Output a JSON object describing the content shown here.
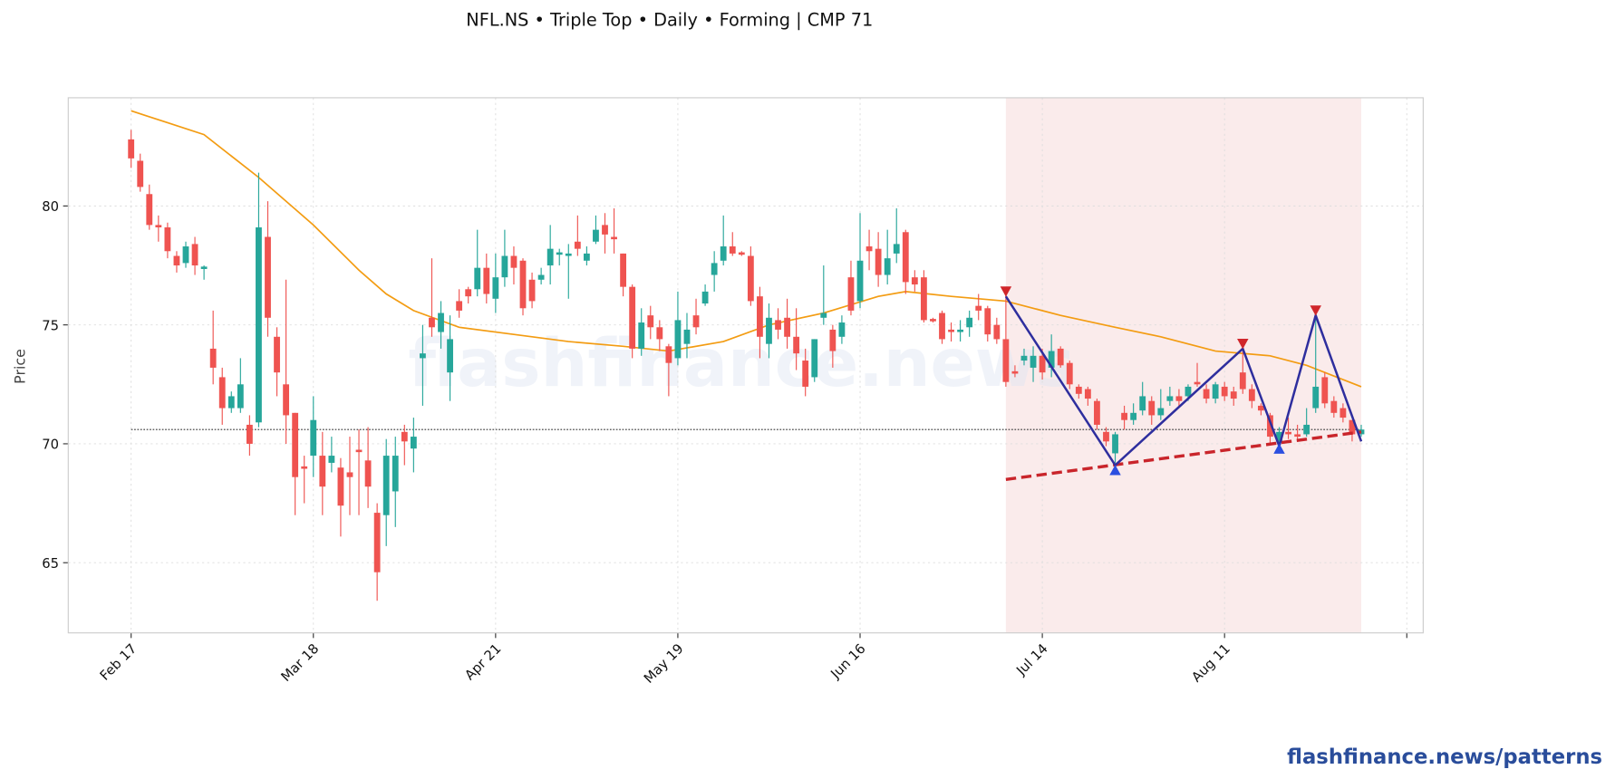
{
  "chart_data": {
    "type": "candlestick",
    "title": "NFL.NS  •  Triple Top  •  Daily  •  Forming  |  CMP 71",
    "ylabel": "Price",
    "watermark": "flashfinance.news",
    "footer": "flashfinance.news/patterns",
    "xlim": [
      -6.9,
      141.8
    ],
    "ylim": [
      62.05,
      84.55
    ],
    "yticks": [
      65,
      70,
      75,
      80
    ],
    "xticks": [
      {
        "value": 0,
        "label": "Feb 17"
      },
      {
        "value": 20,
        "label": "Mar 18"
      },
      {
        "value": 40,
        "label": "Apr 21"
      },
      {
        "value": 60,
        "label": "May 19"
      },
      {
        "value": 80,
        "label": "Jun 16"
      },
      {
        "value": 100,
        "label": "Jul 14"
      },
      {
        "value": 120,
        "label": "Aug 11"
      },
      {
        "value": 140,
        "label": null
      }
    ],
    "grid": true,
    "up_color": "#26a69a",
    "down_color": "#ef5350",
    "candles": [
      [
        82.8,
        83.2,
        81.6,
        82.0
      ],
      [
        81.9,
        82.2,
        80.6,
        80.8
      ],
      [
        80.5,
        80.9,
        79.0,
        79.2
      ],
      [
        79.2,
        79.6,
        78.5,
        79.1
      ],
      [
        79.1,
        79.3,
        77.8,
        78.1
      ],
      [
        77.9,
        78.1,
        77.2,
        77.5
      ],
      [
        77.6,
        78.5,
        77.4,
        78.3
      ],
      [
        78.4,
        78.7,
        77.1,
        77.5
      ],
      [
        77.35,
        77.5,
        76.9,
        77.45
      ],
      [
        74.0,
        75.6,
        72.5,
        73.2
      ],
      [
        72.8,
        73.2,
        70.8,
        71.5
      ],
      [
        71.5,
        72.2,
        71.3,
        72.0
      ],
      [
        71.5,
        73.6,
        71.3,
        72.5
      ],
      [
        70.8,
        71.2,
        69.5,
        70.0
      ],
      [
        70.9,
        81.4,
        70.7,
        79.1
      ],
      [
        78.7,
        80.2,
        74.5,
        75.3
      ],
      [
        74.5,
        74.9,
        72.0,
        73.0
      ],
      [
        72.5,
        76.9,
        70.0,
        71.2
      ],
      [
        71.3,
        71.3,
        67.0,
        68.6
      ],
      [
        69.05,
        69.5,
        67.5,
        68.95
      ],
      [
        69.5,
        72.0,
        68.6,
        71.0
      ],
      [
        69.5,
        70.5,
        67.0,
        68.2
      ],
      [
        69.2,
        70.3,
        68.8,
        69.5
      ],
      [
        69.0,
        69.4,
        66.1,
        67.4
      ],
      [
        68.8,
        70.3,
        67.0,
        68.6
      ],
      [
        69.75,
        70.6,
        67.0,
        69.65
      ],
      [
        69.3,
        70.7,
        67.3,
        68.2
      ],
      [
        67.1,
        67.5,
        63.4,
        64.6
      ],
      [
        67.0,
        70.2,
        65.7,
        69.5
      ],
      [
        68.0,
        70.3,
        66.5,
        69.5
      ],
      [
        70.5,
        70.8,
        69.1,
        70.1
      ],
      [
        69.8,
        71.1,
        68.8,
        70.3
      ],
      [
        73.6,
        75.0,
        71.6,
        73.8
      ],
      [
        75.3,
        77.8,
        74.5,
        74.9
      ],
      [
        74.7,
        76.0,
        74.0,
        75.5
      ],
      [
        73.0,
        75.4,
        71.8,
        74.4
      ],
      [
        76.0,
        76.5,
        75.3,
        75.6
      ],
      [
        76.5,
        76.6,
        75.9,
        76.2
      ],
      [
        76.5,
        79.0,
        76.2,
        77.4
      ],
      [
        77.4,
        78.0,
        75.9,
        76.3
      ],
      [
        76.1,
        78.0,
        75.5,
        77.0
      ],
      [
        77.0,
        79.0,
        76.6,
        77.9
      ],
      [
        77.9,
        78.3,
        76.7,
        77.4
      ],
      [
        77.7,
        77.8,
        75.4,
        75.7
      ],
      [
        76.9,
        77.2,
        75.7,
        76.0
      ],
      [
        76.9,
        77.4,
        76.7,
        77.1
      ],
      [
        77.5,
        79.2,
        76.7,
        78.2
      ],
      [
        77.95,
        78.2,
        77.5,
        78.05
      ],
      [
        77.9,
        78.4,
        76.1,
        78.0
      ],
      [
        78.5,
        79.6,
        77.9,
        78.2
      ],
      [
        77.7,
        78.3,
        77.5,
        78.0
      ],
      [
        78.5,
        79.6,
        78.4,
        79.0
      ],
      [
        79.2,
        79.7,
        78.0,
        78.8
      ],
      [
        78.7,
        79.9,
        78.0,
        78.6
      ],
      [
        78.0,
        78.0,
        76.2,
        76.6
      ],
      [
        76.6,
        76.7,
        73.6,
        74.0
      ],
      [
        74.0,
        75.7,
        73.7,
        75.1
      ],
      [
        75.4,
        75.8,
        74.4,
        74.9
      ],
      [
        74.9,
        75.2,
        73.9,
        74.4
      ],
      [
        74.1,
        74.2,
        72.0,
        73.4
      ],
      [
        73.6,
        76.4,
        73.3,
        75.2
      ],
      [
        74.2,
        75.5,
        73.6,
        74.8
      ],
      [
        75.4,
        76.1,
        74.6,
        74.9
      ],
      [
        75.9,
        76.7,
        75.8,
        76.4
      ],
      [
        77.1,
        78.1,
        76.4,
        77.6
      ],
      [
        77.7,
        79.6,
        77.5,
        78.3
      ],
      [
        78.3,
        78.9,
        77.9,
        78.0
      ],
      [
        78.05,
        78.1,
        77.9,
        77.95
      ],
      [
        77.9,
        78.3,
        75.8,
        76.0
      ],
      [
        76.2,
        76.6,
        73.6,
        74.5
      ],
      [
        74.2,
        75.9,
        73.6,
        75.3
      ],
      [
        75.2,
        75.7,
        74.4,
        74.8
      ],
      [
        75.3,
        76.1,
        74.0,
        74.5
      ],
      [
        74.5,
        75.7,
        73.1,
        73.8
      ],
      [
        73.5,
        74.0,
        72.0,
        72.4
      ],
      [
        72.8,
        74.4,
        72.6,
        74.4
      ],
      [
        75.3,
        77.5,
        75.0,
        75.5
      ],
      [
        74.8,
        75.0,
        73.2,
        73.9
      ],
      [
        74.5,
        75.4,
        74.2,
        75.1
      ],
      [
        77.0,
        77.7,
        75.4,
        75.6
      ],
      [
        76.0,
        79.7,
        75.7,
        77.7
      ],
      [
        78.3,
        79.0,
        77.3,
        78.1
      ],
      [
        78.2,
        78.9,
        76.6,
        77.1
      ],
      [
        77.1,
        79.0,
        76.7,
        77.8
      ],
      [
        78.0,
        79.9,
        77.6,
        78.4
      ],
      [
        78.9,
        79.0,
        76.3,
        76.8
      ],
      [
        77.0,
        77.3,
        76.4,
        76.7
      ],
      [
        77.0,
        77.3,
        75.1,
        75.2
      ],
      [
        75.25,
        75.3,
        75.1,
        75.15
      ],
      [
        75.5,
        75.6,
        74.2,
        74.4
      ],
      [
        74.8,
        75.1,
        74.3,
        74.7
      ],
      [
        74.7,
        75.2,
        74.3,
        74.8
      ],
      [
        74.9,
        75.6,
        74.5,
        75.3
      ],
      [
        75.8,
        76.3,
        75.2,
        75.6
      ],
      [
        75.7,
        75.8,
        74.3,
        74.6
      ],
      [
        75.0,
        75.3,
        74.2,
        74.4
      ],
      [
        74.4,
        76.3,
        72.4,
        72.6
      ],
      [
        73.05,
        73.3,
        72.8,
        72.95
      ],
      [
        73.5,
        74.0,
        73.3,
        73.7
      ],
      [
        73.2,
        74.1,
        72.6,
        73.7
      ],
      [
        73.7,
        74.0,
        72.7,
        73.0
      ],
      [
        73.2,
        74.6,
        72.8,
        73.9
      ],
      [
        74.0,
        74.1,
        73.2,
        73.3
      ],
      [
        73.4,
        73.5,
        72.3,
        72.5
      ],
      [
        72.4,
        72.5,
        71.9,
        72.1
      ],
      [
        72.3,
        72.4,
        71.6,
        71.9
      ],
      [
        71.8,
        71.9,
        70.6,
        70.8
      ],
      [
        70.5,
        70.7,
        69.9,
        70.1
      ],
      [
        69.6,
        70.5,
        69.2,
        70.4
      ],
      [
        71.3,
        71.6,
        70.6,
        71.0
      ],
      [
        71.0,
        71.7,
        70.8,
        71.3
      ],
      [
        71.4,
        72.6,
        71.2,
        72.0
      ],
      [
        71.8,
        72.0,
        70.8,
        71.2
      ],
      [
        71.2,
        72.3,
        71.0,
        71.5
      ],
      [
        71.8,
        72.4,
        71.6,
        72.0
      ],
      [
        72.0,
        72.3,
        71.5,
        71.8
      ],
      [
        72.0,
        72.5,
        71.8,
        72.4
      ],
      [
        72.6,
        73.4,
        72.4,
        72.5
      ],
      [
        72.3,
        72.5,
        71.7,
        71.9
      ],
      [
        71.9,
        72.6,
        71.7,
        72.5
      ],
      [
        72.4,
        72.6,
        71.8,
        72.0
      ],
      [
        72.2,
        72.4,
        71.6,
        71.9
      ],
      [
        73.0,
        74.0,
        72.1,
        72.3
      ],
      [
        72.3,
        72.5,
        71.5,
        71.8
      ],
      [
        71.6,
        71.7,
        71.2,
        71.4
      ],
      [
        71.2,
        71.3,
        70.0,
        70.3
      ],
      [
        70.1,
        70.7,
        69.9,
        70.5
      ],
      [
        70.5,
        71.1,
        70.2,
        70.4
      ],
      [
        70.4,
        70.8,
        70.1,
        70.3
      ],
      [
        70.4,
        71.5,
        70.3,
        70.8
      ],
      [
        71.5,
        75.4,
        71.3,
        72.4
      ],
      [
        72.8,
        73.0,
        71.5,
        71.7
      ],
      [
        71.8,
        72.0,
        71.1,
        71.3
      ],
      [
        71.5,
        71.7,
        70.9,
        71.1
      ],
      [
        71.0,
        71.0,
        70.1,
        70.4
      ],
      [
        70.4,
        70.8,
        70.3,
        70.6
      ]
    ],
    "moving_average": {
      "color": "#f39c12",
      "x": [
        0,
        4,
        8,
        14,
        20,
        25,
        28,
        31,
        36,
        42,
        48,
        54,
        59,
        65,
        70,
        76,
        82,
        85,
        90,
        96,
        102,
        108,
        113,
        119,
        125,
        129,
        135
      ],
      "values": [
        84.0,
        83.5,
        83.0,
        81.2,
        79.2,
        77.3,
        76.3,
        75.6,
        74.9,
        74.6,
        74.3,
        74.1,
        73.9,
        74.3,
        75.0,
        75.5,
        76.2,
        76.4,
        76.2,
        76.0,
        75.4,
        74.9,
        74.5,
        73.9,
        73.7,
        73.3,
        72.4
      ]
    },
    "cmp_line": {
      "value": 70.6,
      "x": [
        0,
        135
      ]
    },
    "highlight": {
      "x": [
        96,
        135
      ],
      "color": "#f9e6e6"
    },
    "pattern": {
      "color": "#2e2e9e",
      "x": [
        96,
        108,
        122,
        126,
        130,
        135
      ],
      "values": [
        76.2,
        69.1,
        74.0,
        69.9,
        75.4,
        70.1
      ]
    },
    "peaks": {
      "color": "#d0262b",
      "x": [
        96,
        122,
        130
      ],
      "values": [
        76.4,
        74.2,
        75.6
      ]
    },
    "troughs": {
      "color": "#2b4fe0",
      "x": [
        108,
        126
      ],
      "values": [
        68.9,
        69.8
      ]
    },
    "neckline": {
      "color": "#c9252b",
      "x": [
        96,
        135
      ],
      "values": [
        68.5,
        70.5
      ]
    }
  }
}
